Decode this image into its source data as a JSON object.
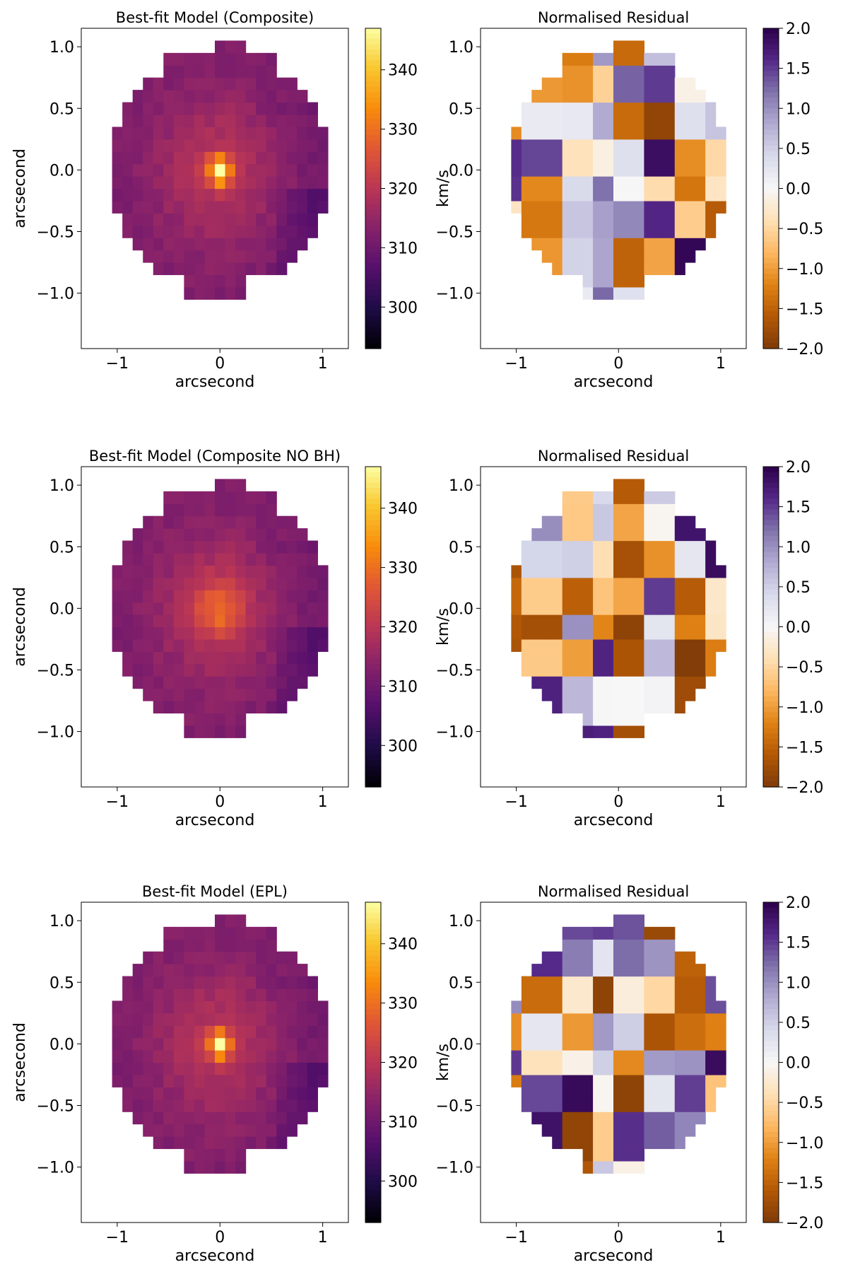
{
  "figure": {
    "cbar_unit": "km/s"
  },
  "chart_data": [
    {
      "id": "model-composite",
      "type": "heatmap",
      "title": "Best-fit Model (Composite)",
      "xlabel": "arcsecond",
      "ylabel": "arcsecond",
      "xlim": [
        -1.35,
        1.25
      ],
      "ylim": [
        -1.45,
        1.15
      ],
      "xticks": [
        -1,
        0,
        1
      ],
      "xtick_labels": [
        "−1",
        "0",
        "1"
      ],
      "yticks": [
        1.0,
        0.5,
        0.0,
        -0.5,
        -1.0
      ],
      "ytick_labels": [
        "1.0",
        "0.5",
        "0.0",
        "−0.5",
        "−1.0"
      ],
      "colormap": "inferno",
      "vmin": 293,
      "vmax": 347,
      "cbar_ticks": [
        300,
        310,
        320,
        330,
        340
      ],
      "cbar_tick_labels": [
        "300",
        "310",
        "320",
        "330",
        "340"
      ],
      "cbar_label": "km/s",
      "field": "vrms",
      "model": "composite"
    },
    {
      "id": "resid-composite",
      "type": "heatmap",
      "title": "Normalised Residual",
      "xlabel": "arcsecond",
      "ylabel": "",
      "xlim": [
        -1.35,
        1.25
      ],
      "ylim": [
        -1.45,
        1.15
      ],
      "xticks": [
        -1,
        0,
        1
      ],
      "xtick_labels": [
        "−1",
        "0",
        "1"
      ],
      "yticks": [
        1.0,
        0.5,
        0.0,
        -0.5,
        -1.0
      ],
      "ytick_labels": [
        "1.0",
        "0.5",
        "0.0",
        "−0.5",
        "−1.0"
      ],
      "colormap": "PuOr",
      "vmin": -2.0,
      "vmax": 2.0,
      "cbar_ticks": [
        2.0,
        1.5,
        1.0,
        0.5,
        0.0,
        -0.5,
        -1.0,
        -1.5,
        -2.0
      ],
      "cbar_tick_labels": [
        "2.0",
        "1.5",
        "1.0",
        "0.5",
        "0.0",
        "−0.5",
        "−1.0",
        "−1.5",
        "−2.0"
      ],
      "cbar_label": "",
      "field": "residual",
      "seed": 11
    },
    {
      "id": "model-composite-nobh",
      "type": "heatmap",
      "title": "Best-fit Model (Composite NO BH)",
      "xlabel": "arcsecond",
      "ylabel": "arcsecond",
      "xlim": [
        -1.35,
        1.25
      ],
      "ylim": [
        -1.45,
        1.15
      ],
      "xticks": [
        -1,
        0,
        1
      ],
      "xtick_labels": [
        "−1",
        "0",
        "1"
      ],
      "yticks": [
        1.0,
        0.5,
        0.0,
        -0.5,
        -1.0
      ],
      "ytick_labels": [
        "1.0",
        "0.5",
        "0.0",
        "−0.5",
        "−1.0"
      ],
      "colormap": "inferno",
      "vmin": 293,
      "vmax": 347,
      "cbar_ticks": [
        300,
        310,
        320,
        330,
        340
      ],
      "cbar_tick_labels": [
        "300",
        "310",
        "320",
        "330",
        "340"
      ],
      "cbar_label": "km/s",
      "field": "vrms",
      "model": "nobh"
    },
    {
      "id": "resid-composite-nobh",
      "type": "heatmap",
      "title": "Normalised Residual",
      "xlabel": "arcsecond",
      "ylabel": "",
      "xlim": [
        -1.35,
        1.25
      ],
      "ylim": [
        -1.45,
        1.15
      ],
      "xticks": [
        -1,
        0,
        1
      ],
      "xtick_labels": [
        "−1",
        "0",
        "1"
      ],
      "yticks": [
        1.0,
        0.5,
        0.0,
        -0.5,
        -1.0
      ],
      "ytick_labels": [
        "1.0",
        "0.5",
        "0.0",
        "−0.5",
        "−1.0"
      ],
      "colormap": "PuOr",
      "vmin": -2.0,
      "vmax": 2.0,
      "cbar_ticks": [
        2.0,
        1.5,
        1.0,
        0.5,
        0.0,
        -0.5,
        -1.0,
        -1.5,
        -2.0
      ],
      "cbar_tick_labels": [
        "2.0",
        "1.5",
        "1.0",
        "0.5",
        "0.0",
        "−0.5",
        "−1.0",
        "−1.5",
        "−2.0"
      ],
      "cbar_label": "",
      "field": "residual",
      "seed": 23
    },
    {
      "id": "model-epl",
      "type": "heatmap",
      "title": "Best-fit Model (EPL)",
      "xlabel": "arcsecond",
      "ylabel": "arcsecond",
      "xlim": [
        -1.35,
        1.25
      ],
      "ylim": [
        -1.45,
        1.15
      ],
      "xticks": [
        -1,
        0,
        1
      ],
      "xtick_labels": [
        "−1",
        "0",
        "1"
      ],
      "yticks": [
        1.0,
        0.5,
        0.0,
        -0.5,
        -1.0
      ],
      "ytick_labels": [
        "1.0",
        "0.5",
        "0.0",
        "−0.5",
        "−1.0"
      ],
      "colormap": "inferno",
      "vmin": 293,
      "vmax": 347,
      "cbar_ticks": [
        300,
        310,
        320,
        330,
        340
      ],
      "cbar_tick_labels": [
        "300",
        "310",
        "320",
        "330",
        "340"
      ],
      "cbar_label": "km/s",
      "field": "vrms",
      "model": "epl"
    },
    {
      "id": "resid-epl",
      "type": "heatmap",
      "title": "Normalised Residual",
      "xlabel": "arcsecond",
      "ylabel": "",
      "xlim": [
        -1.35,
        1.25
      ],
      "ylim": [
        -1.45,
        1.15
      ],
      "xticks": [
        -1,
        0,
        1
      ],
      "xtick_labels": [
        "−1",
        "0",
        "1"
      ],
      "yticks": [
        1.0,
        0.5,
        0.0,
        -0.5,
        -1.0
      ],
      "ytick_labels": [
        "1.0",
        "0.5",
        "0.0",
        "−0.5",
        "−1.0"
      ],
      "colormap": "PuOr",
      "vmin": -2.0,
      "vmax": 2.0,
      "cbar_ticks": [
        2.0,
        1.5,
        1.0,
        0.5,
        0.0,
        -0.5,
        -1.0,
        -1.5,
        -2.0
      ],
      "cbar_tick_labels": [
        "2.0",
        "1.5",
        "1.0",
        "0.5",
        "0.0",
        "−0.5",
        "−1.0",
        "−1.5",
        "−2.0"
      ],
      "cbar_label": "",
      "field": "residual",
      "seed": 37
    }
  ]
}
